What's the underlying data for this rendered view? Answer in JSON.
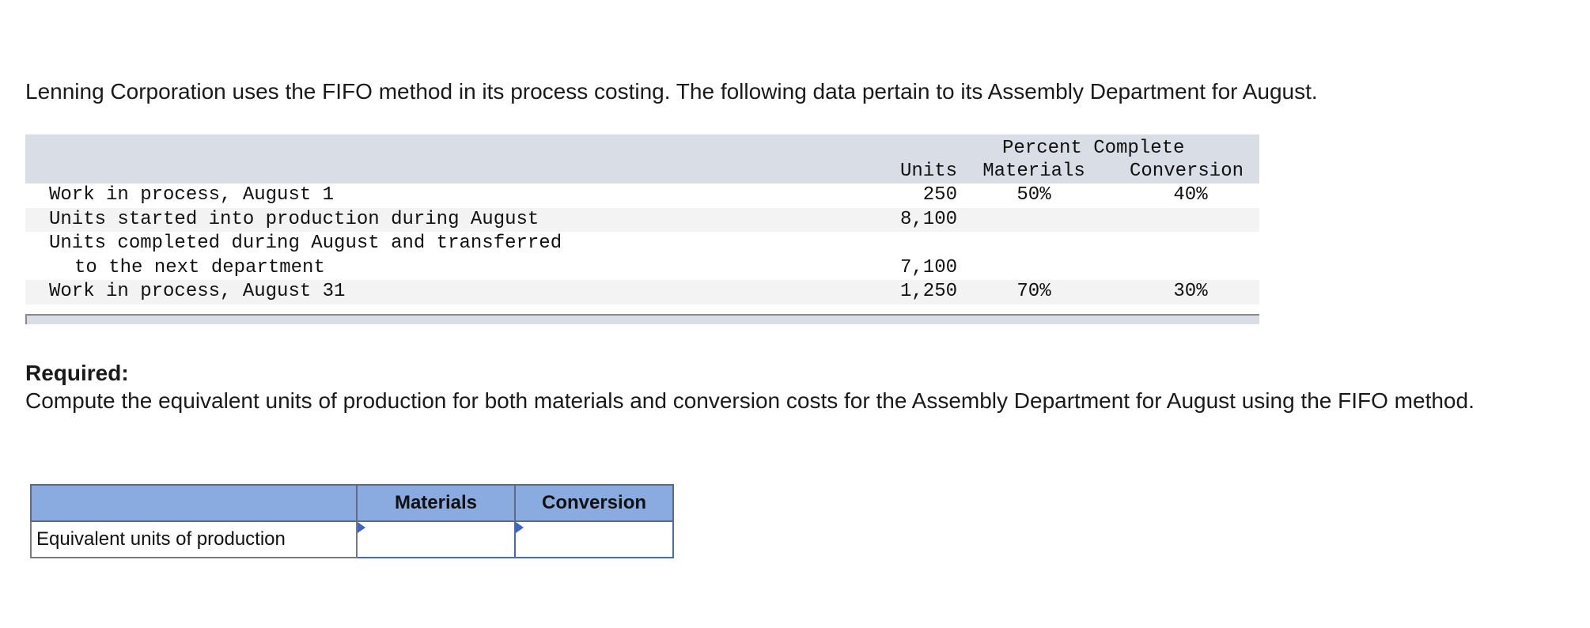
{
  "intro_text": "Lenning Corporation uses the FIFO method in its process costing. The following data pertain to its Assembly Department for August.",
  "data_table": {
    "header_group": "Percent Complete",
    "header_units": "Units",
    "header_materials": "Materials",
    "header_conversion": "Conversion",
    "rows": [
      {
        "label": "Work in process, August 1",
        "units": "250",
        "materials": "50%",
        "conversion": "40%"
      },
      {
        "label": "Units started into production during August",
        "units": "8,100",
        "materials": "",
        "conversion": ""
      },
      {
        "label": "Units completed during August and transferred",
        "units": "",
        "materials": "",
        "conversion": ""
      },
      {
        "label": "to the next department",
        "units": "7,100",
        "materials": "",
        "conversion": ""
      },
      {
        "label": "Work in process, August 31",
        "units": "1,250",
        "materials": "70%",
        "conversion": "30%"
      }
    ]
  },
  "required": {
    "title": "Required:",
    "text": "Compute the equivalent units of production for both materials and conversion costs for the Assembly Department for August using the FIFO method."
  },
  "answer_table": {
    "col_materials": "Materials",
    "col_conversion": "Conversion",
    "row_label": "Equivalent units of production",
    "materials_value": "",
    "conversion_value": ""
  }
}
